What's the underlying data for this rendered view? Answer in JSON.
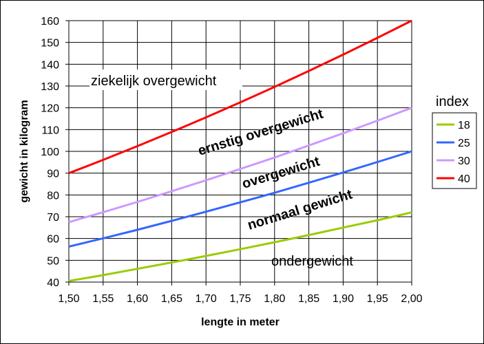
{
  "chart_data": {
    "type": "line",
    "xlabel": "lengte in meter",
    "ylabel": "gewicht in kilogram",
    "xlim": [
      1.5,
      2.0
    ],
    "ylim": [
      40,
      160
    ],
    "x_ticks": [
      "1,50",
      "1,55",
      "1,60",
      "1,65",
      "1,70",
      "1,75",
      "1,80",
      "1,85",
      "1,90",
      "1,95",
      "2,00"
    ],
    "y_ticks": [
      "40",
      "50",
      "60",
      "70",
      "80",
      "90",
      "100",
      "110",
      "120",
      "130",
      "140",
      "150",
      "160"
    ],
    "grid": true,
    "legend_title": "index",
    "legend_position": "right",
    "x": [
      1.5,
      1.55,
      1.6,
      1.65,
      1.7,
      1.75,
      1.8,
      1.85,
      1.9,
      1.95,
      2.0
    ],
    "series": [
      {
        "name": "18",
        "color": "#99cc00",
        "values": [
          40.5,
          43.2,
          46.1,
          49.0,
          52.0,
          55.1,
          58.3,
          61.6,
          65.0,
          68.4,
          72.0
        ]
      },
      {
        "name": "25",
        "color": "#3366ff",
        "values": [
          56.3,
          60.1,
          64.0,
          68.1,
          72.3,
          76.6,
          81.0,
          85.6,
          90.3,
          95.1,
          100.0
        ]
      },
      {
        "name": "30",
        "color": "#cc99ff",
        "values": [
          67.5,
          72.1,
          76.8,
          81.7,
          86.7,
          91.9,
          97.2,
          102.7,
          108.3,
          114.1,
          120.0
        ]
      },
      {
        "name": "40",
        "color": "#ff0000",
        "values": [
          90.0,
          96.1,
          102.4,
          108.9,
          115.6,
          122.5,
          129.6,
          136.9,
          144.4,
          152.1,
          160.0
        ]
      }
    ],
    "annotations": {
      "obese": "ziekelijk overgewicht",
      "severe": "ernstig overgewicht",
      "over": "overgewicht",
      "normal": "normaal gewicht",
      "under": "ondergewicht"
    }
  }
}
